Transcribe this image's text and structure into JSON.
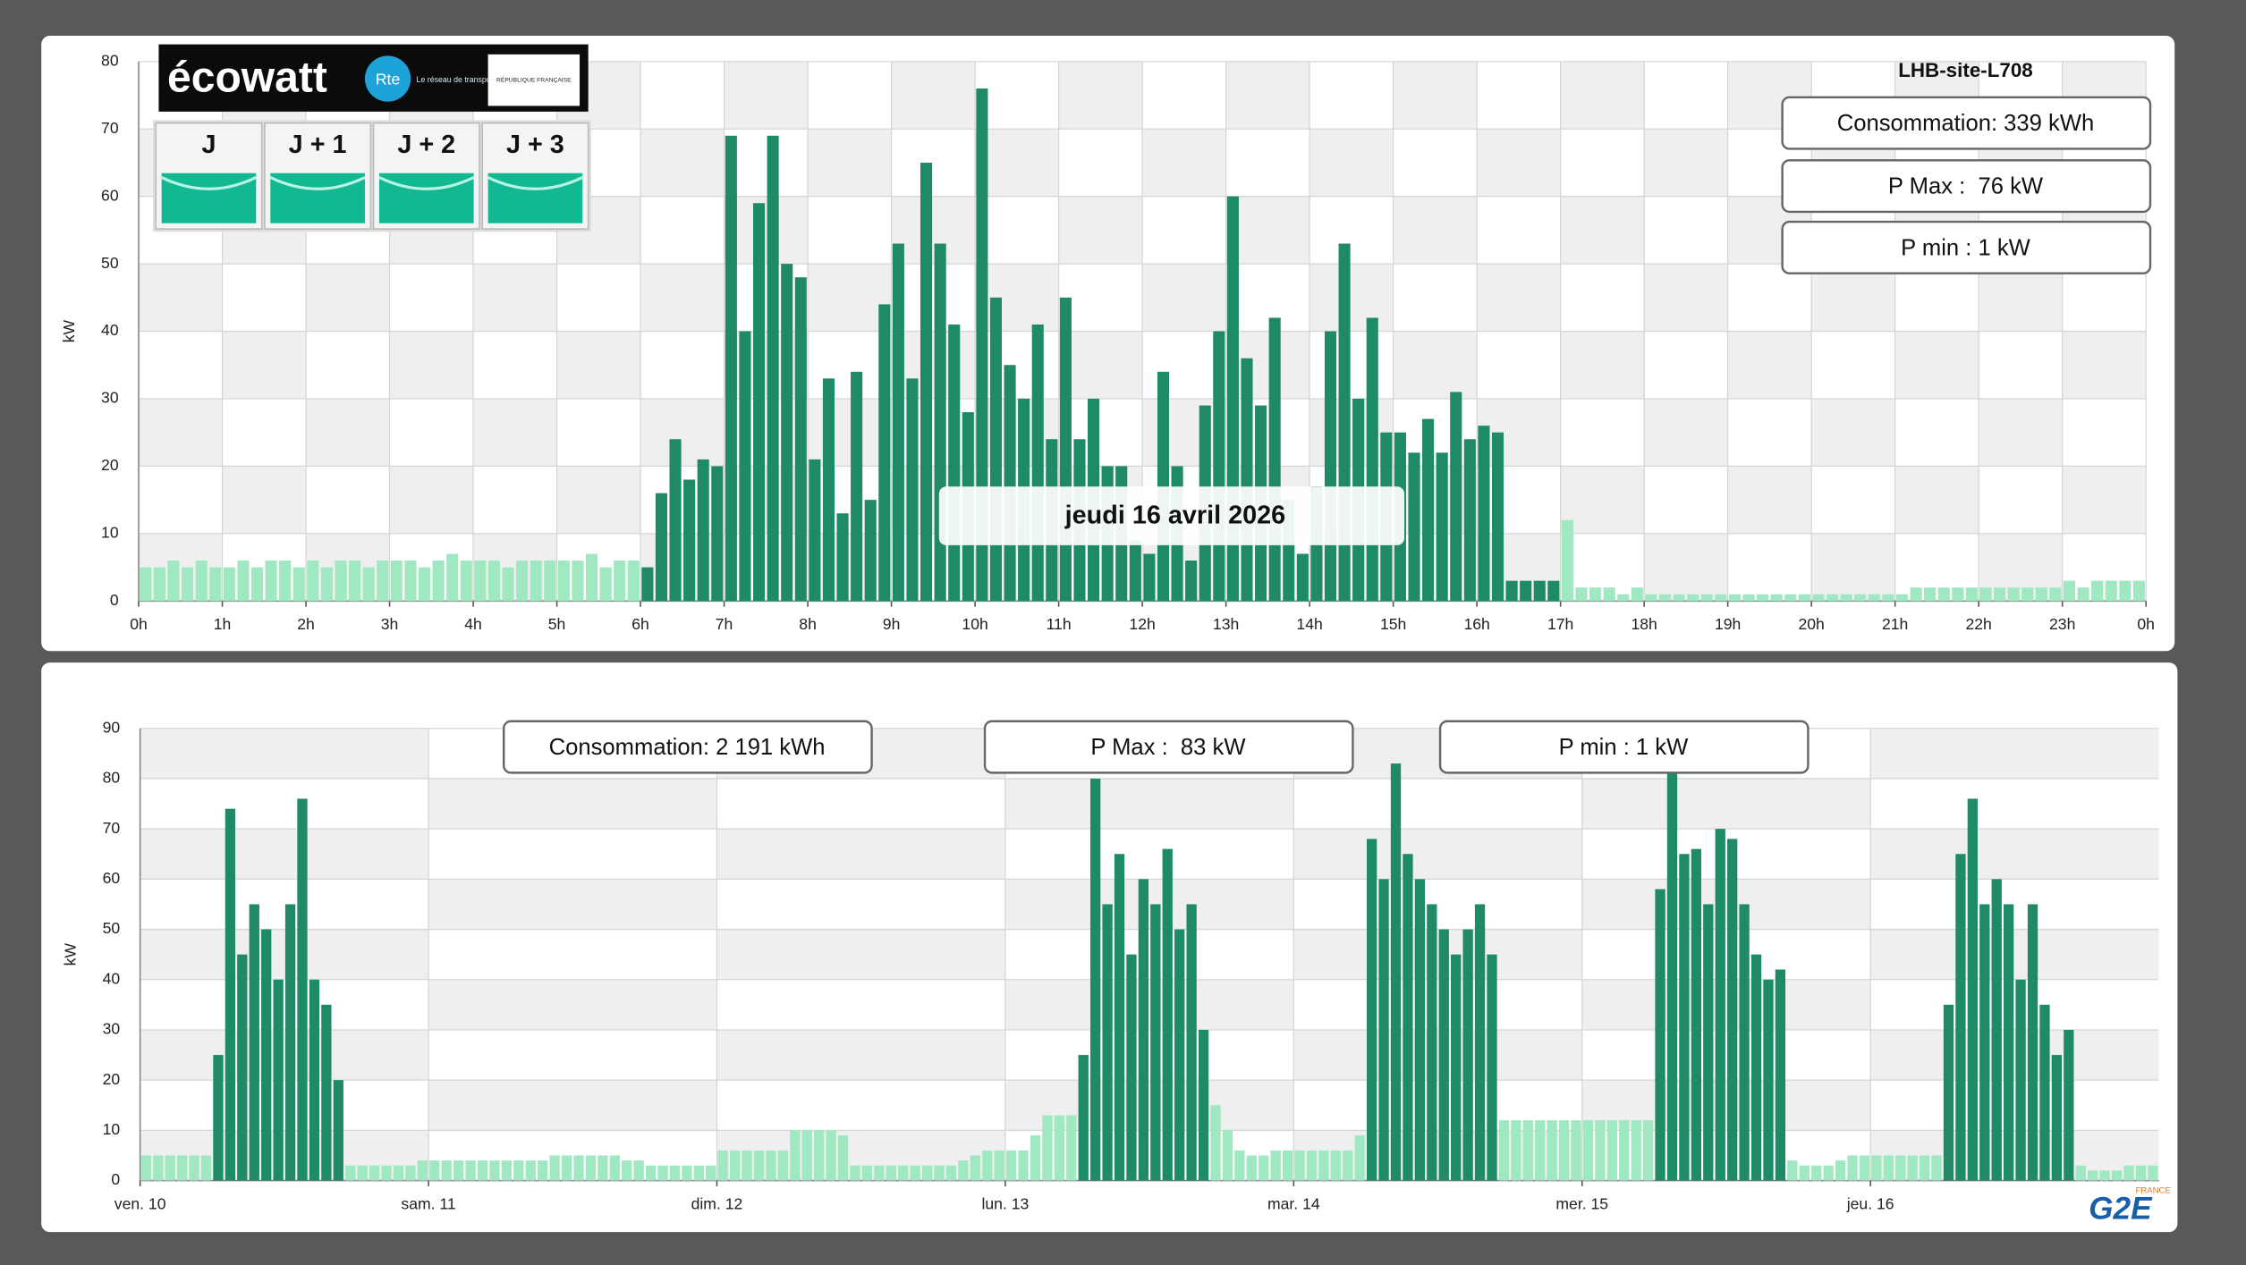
{
  "ecowatt": {
    "logo": "écowatt",
    "rte": "Rte",
    "rte_tagline": "Le réseau de transport d'électricité",
    "republique": "RÉPUBLIQUE FRANÇAISE",
    "days": [
      "J",
      "J + 1",
      "J + 2",
      "J + 3"
    ]
  },
  "site": "LHB-site-L708",
  "brand": {
    "logo": "G2E",
    "country": "FRANCE"
  },
  "chart_data": [
    {
      "type": "bar",
      "date_label": "jeudi 16 avril 2026",
      "y_label": "kW",
      "stats": [
        "Consommation: 339 kWh",
        "P Max :  76 kW",
        "P min : 1 kW"
      ],
      "xlim": [
        0,
        24
      ],
      "xticks": [
        {
          "value": 0,
          "label": "0h"
        },
        {
          "value": 1,
          "label": "1h"
        },
        {
          "value": 2,
          "label": "2h"
        },
        {
          "value": 3,
          "label": "3h"
        },
        {
          "value": 4,
          "label": "4h"
        },
        {
          "value": 5,
          "label": "5h"
        },
        {
          "value": 6,
          "label": "6h"
        },
        {
          "value": 7,
          "label": "7h"
        },
        {
          "value": 8,
          "label": "8h"
        },
        {
          "value": 9,
          "label": "9h"
        },
        {
          "value": 10,
          "label": "10h"
        },
        {
          "value": 11,
          "label": "11h"
        },
        {
          "value": 12,
          "label": "12h"
        },
        {
          "value": 13,
          "label": "13h"
        },
        {
          "value": 14,
          "label": "14h"
        },
        {
          "value": 15,
          "label": "15h"
        },
        {
          "value": 16,
          "label": "16h"
        },
        {
          "value": 17,
          "label": "17h"
        },
        {
          "value": 18,
          "label": "18h"
        },
        {
          "value": 19,
          "label": "19h"
        },
        {
          "value": 20,
          "label": "20h"
        },
        {
          "value": 21,
          "label": "21h"
        },
        {
          "value": 22,
          "label": "22h"
        },
        {
          "value": 23,
          "label": "23h"
        },
        {
          "value": 24,
          "label": "0h"
        }
      ],
      "ylim": [
        0,
        80
      ],
      "yticks": [
        0,
        10,
        20,
        30,
        40,
        50,
        60,
        70,
        80
      ],
      "series": [
        {
          "color": "#1f8a66",
          "values": [
            null,
            null,
            null,
            null,
            null,
            null,
            null,
            null,
            null,
            null,
            null,
            null,
            null,
            null,
            null,
            null,
            null,
            null,
            null,
            null,
            null,
            null,
            null,
            null,
            null,
            null,
            null,
            null,
            null,
            null,
            null,
            null,
            null,
            null,
            null,
            null,
            5,
            16,
            24,
            18,
            21,
            20,
            69,
            40,
            59,
            69,
            50,
            48,
            21,
            33,
            13,
            34,
            15,
            44,
            53,
            33,
            65,
            53,
            41,
            28,
            76,
            45,
            35,
            30,
            41,
            24,
            45,
            24,
            30,
            20,
            20,
            9,
            7,
            34,
            20,
            6,
            29,
            40,
            60,
            36,
            29,
            42,
            15,
            7,
            17,
            40,
            53,
            30,
            42,
            25,
            25,
            22,
            27,
            22,
            31,
            24,
            26,
            25,
            3,
            3,
            3,
            3,
            null,
            null,
            null,
            null,
            null,
            null,
            null,
            null,
            null,
            null,
            null,
            null,
            null,
            null,
            null,
            null,
            null,
            null,
            null,
            null,
            null,
            null,
            null,
            null,
            null,
            null,
            null,
            null,
            null,
            null,
            null,
            null,
            null,
            null,
            null,
            null,
            null,
            null,
            null,
            null,
            null,
            null
          ]
        },
        {
          "color": "#9fe8c2",
          "values": [
            5,
            5,
            6,
            5,
            6,
            5,
            5,
            6,
            5,
            6,
            6,
            5,
            6,
            5,
            6,
            6,
            5,
            6,
            6,
            6,
            5,
            6,
            7,
            6,
            6,
            6,
            5,
            6,
            6,
            6,
            6,
            6,
            7,
            5,
            6,
            6,
            null,
            null,
            null,
            null,
            null,
            null,
            null,
            null,
            null,
            null,
            null,
            null,
            null,
            null,
            null,
            null,
            null,
            null,
            null,
            null,
            null,
            null,
            null,
            null,
            null,
            null,
            null,
            null,
            null,
            null,
            null,
            null,
            null,
            null,
            null,
            null,
            null,
            null,
            null,
            null,
            null,
            null,
            null,
            null,
            null,
            null,
            null,
            null,
            null,
            null,
            null,
            null,
            null,
            null,
            null,
            null,
            null,
            null,
            null,
            null,
            null,
            null,
            null,
            null,
            null,
            null,
            12,
            2,
            2,
            2,
            1,
            2,
            1,
            1,
            1,
            1,
            1,
            1,
            1,
            1,
            1,
            1,
            1,
            1,
            1,
            1,
            1,
            1,
            1,
            1,
            1,
            2,
            2,
            2,
            2,
            2,
            2,
            2,
            2,
            2,
            2,
            2,
            3,
            2,
            3,
            3,
            3,
            3
          ]
        }
      ]
    },
    {
      "type": "bar",
      "y_label": "kW",
      "stats": [
        "Consommation: 2 191 kWh",
        "P Max :  83 kW",
        "P min : 1 kW"
      ],
      "xlim": [
        0,
        168
      ],
      "xticks": [
        {
          "value": 0,
          "label": "ven. 10"
        },
        {
          "value": 24,
          "label": "sam. 11"
        },
        {
          "value": 48,
          "label": "dim. 12"
        },
        {
          "value": 72,
          "label": "lun. 13"
        },
        {
          "value": 96,
          "label": "mar. 14"
        },
        {
          "value": 120,
          "label": "mer. 15"
        },
        {
          "value": 144,
          "label": "jeu. 16"
        }
      ],
      "ylim": [
        0,
        90
      ],
      "yticks": [
        0,
        10,
        20,
        30,
        40,
        50,
        60,
        70,
        80,
        90
      ],
      "series": [
        {
          "color": "#1f8a66",
          "values": [
            null,
            null,
            null,
            null,
            null,
            null,
            25,
            74,
            45,
            55,
            50,
            40,
            55,
            76,
            40,
            35,
            20,
            null,
            null,
            null,
            null,
            null,
            null,
            null,
            null,
            null,
            null,
            null,
            null,
            null,
            null,
            null,
            null,
            null,
            null,
            null,
            null,
            null,
            null,
            null,
            null,
            null,
            null,
            null,
            null,
            null,
            null,
            null,
            null,
            null,
            null,
            null,
            null,
            null,
            null,
            null,
            null,
            null,
            null,
            null,
            null,
            null,
            null,
            null,
            null,
            null,
            null,
            null,
            null,
            null,
            null,
            null,
            null,
            null,
            null,
            null,
            null,
            null,
            25,
            80,
            55,
            65,
            45,
            60,
            55,
            66,
            50,
            55,
            30,
            null,
            null,
            null,
            null,
            null,
            null,
            null,
            null,
            null,
            null,
            null,
            null,
            null,
            68,
            60,
            83,
            65,
            60,
            55,
            50,
            45,
            50,
            55,
            45,
            null,
            null,
            null,
            null,
            null,
            null,
            null,
            null,
            null,
            null,
            null,
            null,
            null,
            58,
            81,
            65,
            66,
            55,
            70,
            68,
            55,
            45,
            40,
            42,
            null,
            null,
            null,
            null,
            null,
            null,
            null,
            null,
            null,
            null,
            null,
            null,
            null,
            35,
            65,
            76,
            55,
            60,
            55,
            40,
            55,
            35,
            25,
            30,
            null,
            null,
            null,
            null,
            null,
            null,
            null
          ]
        },
        {
          "color": "#9fe8c2",
          "values": [
            5,
            5,
            5,
            5,
            5,
            5,
            null,
            null,
            null,
            null,
            null,
            null,
            null,
            null,
            null,
            null,
            null,
            3,
            3,
            3,
            3,
            3,
            3,
            4,
            4,
            4,
            4,
            4,
            4,
            4,
            4,
            4,
            4,
            4,
            5,
            5,
            5,
            5,
            5,
            5,
            4,
            4,
            3,
            3,
            3,
            3,
            3,
            3,
            6,
            6,
            6,
            6,
            6,
            6,
            10,
            10,
            10,
            10,
            9,
            3,
            3,
            3,
            3,
            3,
            3,
            3,
            3,
            3,
            4,
            5,
            6,
            6,
            6,
            6,
            9,
            13,
            13,
            13,
            null,
            null,
            null,
            null,
            null,
            null,
            null,
            null,
            null,
            null,
            null,
            15,
            10,
            6,
            5,
            5,
            6,
            6,
            6,
            6,
            6,
            6,
            6,
            9,
            null,
            null,
            null,
            null,
            null,
            null,
            null,
            null,
            null,
            null,
            null,
            12,
            12,
            12,
            12,
            12,
            12,
            12,
            12,
            12,
            12,
            12,
            12,
            12,
            null,
            null,
            null,
            null,
            null,
            null,
            null,
            null,
            null,
            null,
            null,
            4,
            3,
            3,
            3,
            4,
            5,
            5,
            5,
            5,
            5,
            5,
            5,
            5,
            null,
            null,
            null,
            null,
            null,
            null,
            null,
            null,
            null,
            null,
            null,
            3,
            2,
            2,
            2,
            3,
            3,
            3
          ]
        }
      ]
    }
  ]
}
